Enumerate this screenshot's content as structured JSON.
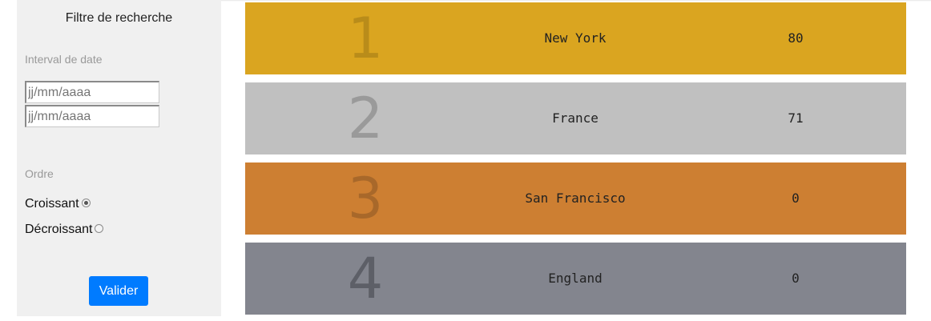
{
  "filter": {
    "title": "Filtre de recherche",
    "date_section_label": "Interval de date",
    "date_from_placeholder": "jj/mm/aaaa",
    "date_to_placeholder": "jj/mm/aaaa",
    "order_section_label": "Ordre",
    "order_options": [
      {
        "label": "Croissant",
        "checked": true
      },
      {
        "label": "Décroissant",
        "checked": false
      }
    ],
    "submit_label": "Valider"
  },
  "ranking": [
    {
      "rank": "1",
      "name": "New York",
      "value": "80",
      "bg_color": "#daa520",
      "number_color": "#b98c1a"
    },
    {
      "rank": "2",
      "name": "France",
      "value": "71",
      "bg_color": "#c0c0c0",
      "number_color": "#9a9a9a"
    },
    {
      "rank": "3",
      "name": "San Francisco",
      "value": "0",
      "bg_color": "#cd7f32",
      "number_color": "#a8682a"
    },
    {
      "rank": "4",
      "name": "England",
      "value": "0",
      "bg_color": "#83858e",
      "number_color": "#5d5f67"
    }
  ],
  "colors": {
    "sidebar_bg": "#f0f0f0",
    "submit_bg": "#007bff"
  }
}
